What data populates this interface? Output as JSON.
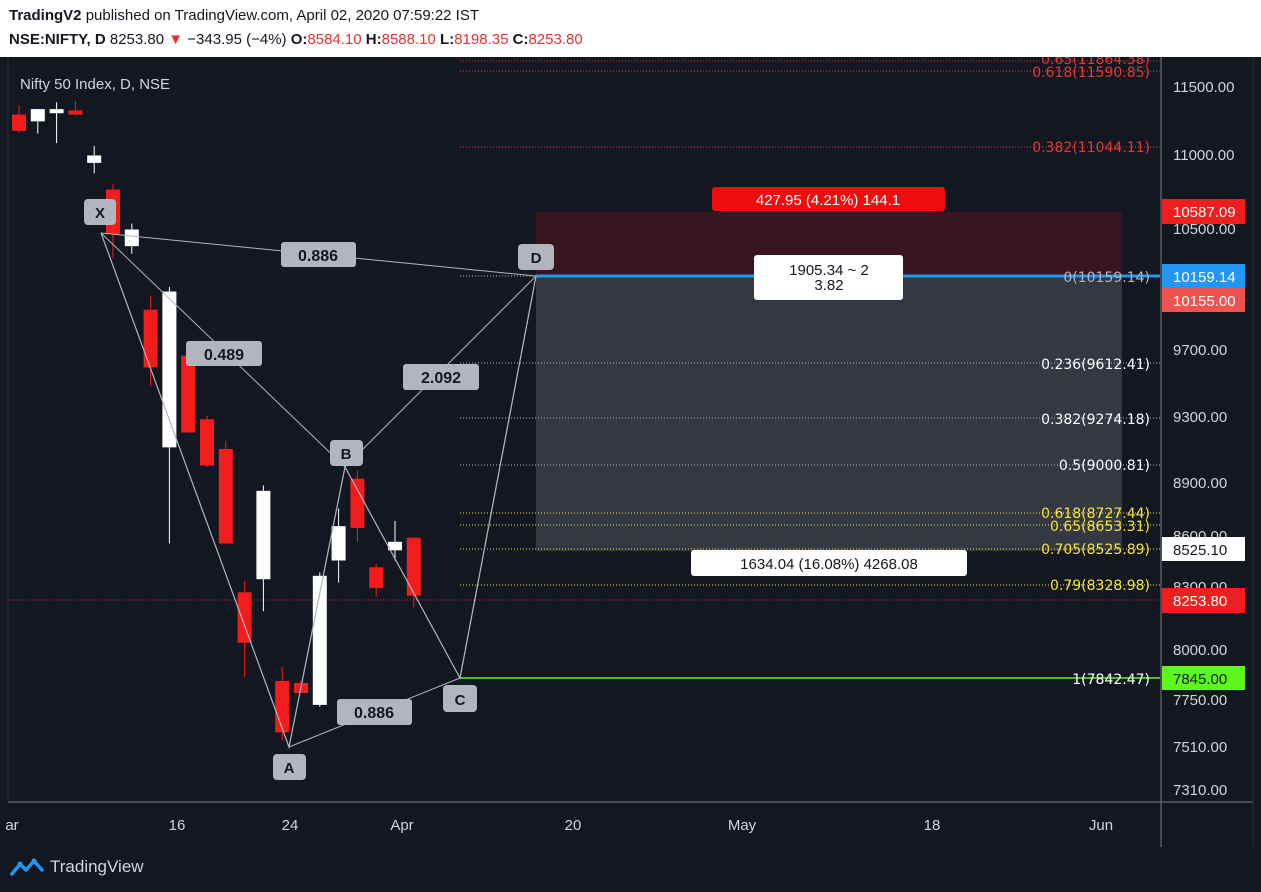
{
  "header": {
    "publisher": "TradingV2",
    "published_text": " published on TradingView.com, April 02, 2020 07:59:22 IST",
    "symbol": "NSE:NIFTY, D",
    "last": "8253.80",
    "change_arrow": "▼",
    "change": "−343.95 (−4%)",
    "open_label": "O:",
    "open": "8584.10",
    "high_label": "H:",
    "high": "8588.10",
    "low_label": "L:",
    "low": "8198.35",
    "close_label": "C:",
    "close": "8253.80"
  },
  "chart": {
    "legend_title": "Nifty 50 Index, D, NSE",
    "y_ticks": [
      "11500.00",
      "11000.00",
      "10500.00",
      "9700.00",
      "9300.00",
      "8900.00",
      "8600.00",
      "8300.00",
      "8000.00",
      "7750.00",
      "7510.00",
      "7310.00"
    ],
    "x_ticks": [
      "ar",
      "16",
      "24",
      "Apr",
      "20",
      "May",
      "18",
      "Jun"
    ],
    "price_tags": {
      "stop": "10587.09",
      "entry": "10159.14",
      "entry2": "10155.00",
      "target": "8525.10",
      "last": "8253.80",
      "c_level": "7845.00"
    },
    "fib_labels": {
      "f65": "0.65(11864.38)",
      "f618_top": "0.618(11590.85)",
      "f382_top": "0.382(11044.11)",
      "f0": "0(10159.14)",
      "f236": "0.236(9612.41)",
      "f382": "0.382(9274.18)",
      "f5": "0.5(9000.81)",
      "f618": "0.618(8727.44)",
      "f650": "0.65(8653.31)",
      "f705": "0.705(8525.89)",
      "f79": "0.79(8328.98)",
      "f1": "1(7842.47)"
    },
    "pattern_points": {
      "x": "X",
      "a": "A",
      "b": "B",
      "c": "C",
      "d": "D"
    },
    "ratios": {
      "xb": "0.489",
      "xd": "0.886",
      "ac": "0.886",
      "bd": "2.092"
    },
    "risk_box_label": "427.95 (4.21%) 144.1",
    "ratio_box_line1": "1905.34 ~ 2",
    "ratio_box_line2": "3.82",
    "reward_box_label": "1634.04 (16.08%) 4268.08",
    "candles": [
      {
        "o": 11290,
        "h": 11360,
        "l": 11160,
        "c": 11170
      },
      {
        "o": 11240,
        "h": 11330,
        "l": 11150,
        "c": 11330
      },
      {
        "o": 11300,
        "h": 11380,
        "l": 11080,
        "c": 11330
      },
      {
        "o": 11320,
        "h": 11390,
        "l": 11280,
        "c": 11290
      },
      {
        "o": 10940,
        "h": 11060,
        "l": 10870,
        "c": 10990
      },
      {
        "o": 10760,
        "h": 10800,
        "l": 10300,
        "c": 10460
      },
      {
        "o": 10380,
        "h": 10530,
        "l": 10330,
        "c": 10490
      },
      {
        "o": 9960,
        "h": 10050,
        "l": 9480,
        "c": 9590
      },
      {
        "o": 9110,
        "h": 10110,
        "l": 8550,
        "c": 10080
      },
      {
        "o": 9660,
        "h": 9670,
        "l": 9200,
        "c": 9200
      },
      {
        "o": 9280,
        "h": 9300,
        "l": 8990,
        "c": 9000
      },
      {
        "o": 9100,
        "h": 9150,
        "l": 8550,
        "c": 8550
      },
      {
        "o": 8270,
        "h": 8330,
        "l": 7860,
        "c": 8030
      },
      {
        "o": 8340,
        "h": 8880,
        "l": 8180,
        "c": 8850
      },
      {
        "o": 7840,
        "h": 7910,
        "l": 7540,
        "c": 7580
      },
      {
        "o": 7830,
        "h": 7840,
        "l": 7800,
        "c": 7780
      },
      {
        "o": 7720,
        "h": 8380,
        "l": 7710,
        "c": 8360
      },
      {
        "o": 8450,
        "h": 8750,
        "l": 8320,
        "c": 8650
      },
      {
        "o": 8920,
        "h": 8970,
        "l": 8560,
        "c": 8640
      },
      {
        "o": 8410,
        "h": 8430,
        "l": 8250,
        "c": 8290
      },
      {
        "o": 8510,
        "h": 8680,
        "l": 8450,
        "c": 8560
      },
      {
        "o": 8584.1,
        "h": 8588.1,
        "l": 8198.35,
        "c": 8253.8
      }
    ],
    "colors": {
      "background": "#131722",
      "up": "#ffffff",
      "down": "#f21c1c",
      "entry_line": "#2196f3",
      "pattern_line": "#b2b5be",
      "price_red": "#ef1f1f",
      "price_green": "#5bf81a"
    }
  },
  "footer": {
    "brand": "TradingView",
    "logo_icon": "tradingview-logo-icon"
  }
}
